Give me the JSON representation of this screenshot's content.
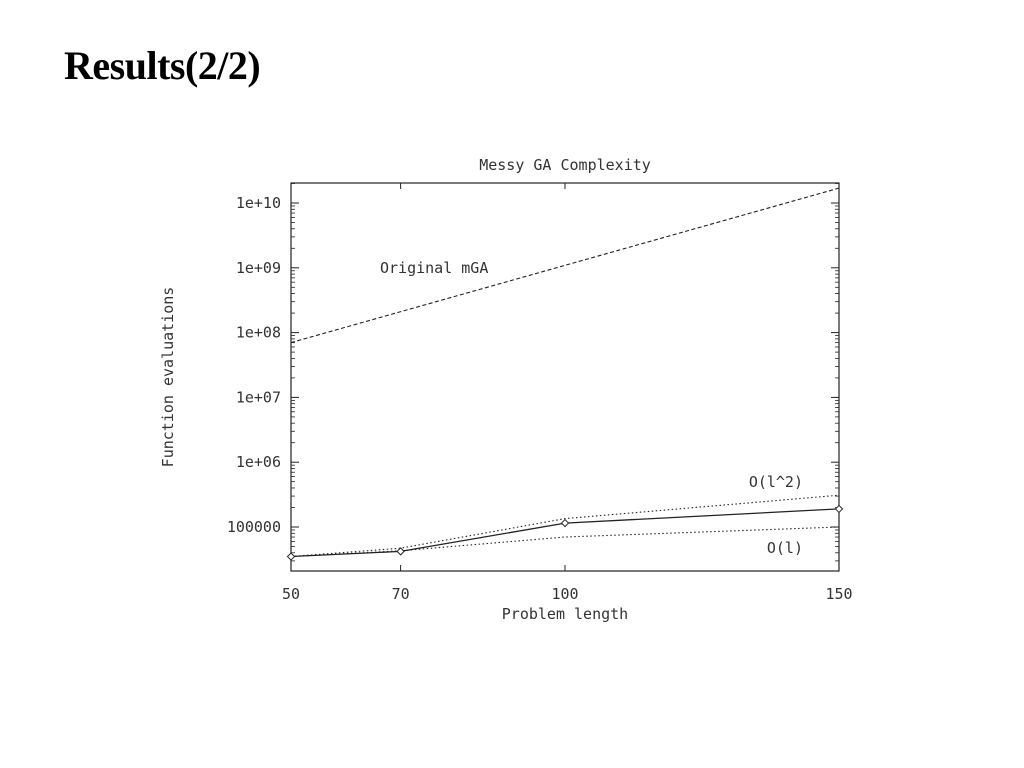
{
  "slide": {
    "title": "Results(2/2)"
  },
  "chart_data": {
    "type": "line",
    "title": "Messy GA Complexity",
    "xlabel": "Problem length",
    "ylabel": "Function evaluations",
    "xscale": "linear",
    "yscale": "log",
    "xlim": [
      50,
      150
    ],
    "ylim": [
      20000,
      20000000000
    ],
    "x_ticks": [
      50,
      70,
      100,
      150
    ],
    "x_tick_labels": [
      "50",
      "70",
      "100",
      "150"
    ],
    "y_ticks": [
      100000,
      1000000,
      10000000,
      100000000,
      1000000000,
      10000000000
    ],
    "y_tick_labels": [
      "100000",
      "1e+06",
      "1e+07",
      "1e+08",
      "1e+09",
      "1e+10"
    ],
    "grid": false,
    "series": [
      {
        "name": "Original mGA",
        "style": "dashed",
        "x": [
          50,
          150
        ],
        "y": [
          70000000,
          17000000000
        ]
      },
      {
        "name": "O(l^2)",
        "style": "dotted",
        "x": [
          50,
          70,
          100,
          150
        ],
        "y": [
          35000,
          47000,
          135000,
          310000
        ]
      },
      {
        "name": "",
        "style": "solid",
        "markers": true,
        "x": [
          50,
          70,
          100,
          150
        ],
        "y": [
          35000,
          42000,
          115000,
          190000
        ]
      },
      {
        "name": "O(l)",
        "style": "dotted",
        "x": [
          50,
          70,
          100,
          150
        ],
        "y": [
          35000,
          43000,
          70000,
          100000
        ]
      }
    ],
    "annotations": [
      {
        "text": "Original mGA",
        "series": "Original mGA"
      },
      {
        "text": "O(l^2)",
        "series": "O(l^2)"
      },
      {
        "text": "O(l)",
        "series": "O(l)"
      }
    ],
    "colors": {
      "line": "#222222",
      "axis": "#222222",
      "text": "#333333"
    }
  }
}
